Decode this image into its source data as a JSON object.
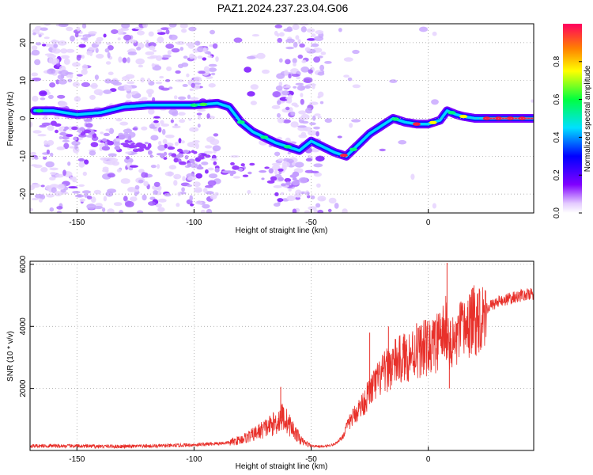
{
  "title": "PAZ1.2024.237.23.04.G06",
  "chart_data": [
    {
      "type": "heatmap",
      "xlabel": "Height of straight line (km)",
      "ylabel": "Frequency (Hz)",
      "xlim": [
        -170,
        45
      ],
      "ylim": [
        -25,
        25
      ],
      "xticks": [
        -150,
        -100,
        -50,
        0
      ],
      "yticks": [
        -20,
        -10,
        0,
        10,
        20
      ],
      "grid": true,
      "colorbar": {
        "label": "Normalized spectral amplitude",
        "range": [
          0,
          1
        ],
        "ticks": [
          0.0,
          0.2,
          0.4,
          0.6,
          0.8
        ],
        "colormap": [
          "#ffffff",
          "#e8d8ff",
          "#8000ff",
          "#0000ff",
          "#00e0ff",
          "#00ff00",
          "#ffff00",
          "#ff8000",
          "#ff0040"
        ]
      },
      "ridge": {
        "x": [
          -168,
          -160,
          -150,
          -140,
          -130,
          -120,
          -110,
          -100,
          -90,
          -85,
          -80,
          -75,
          -70,
          -65,
          -60,
          -55,
          -50,
          -45,
          -40,
          -35,
          -30,
          -25,
          -20,
          -15,
          -10,
          -5,
          0,
          5,
          8,
          12,
          15,
          20,
          25,
          30,
          40,
          45
        ],
        "y": [
          2,
          2,
          1,
          1.5,
          3,
          3.5,
          3.5,
          3.5,
          4,
          3,
          -1,
          -3.5,
          -5,
          -6.5,
          -7.5,
          -8.5,
          -6,
          -7.5,
          -9,
          -10,
          -7,
          -4,
          -2,
          0,
          -1,
          -1.5,
          -1.5,
          -0.5,
          2,
          1,
          0.5,
          0,
          0,
          0,
          0,
          0
        ]
      }
    },
    {
      "type": "line",
      "xlabel": "Height of straight line (km)",
      "ylabel": "SNR (10 * v/v)",
      "xlim": [
        -170,
        45
      ],
      "ylim": [
        0,
        6100
      ],
      "xticks": [
        -150,
        -100,
        -50,
        0
      ],
      "yticks": [
        2000,
        4000,
        6000
      ],
      "grid": true,
      "series_color": "#e8302a",
      "envelope": {
        "x": [
          -170,
          -150,
          -130,
          -110,
          -95,
          -85,
          -80,
          -75,
          -70,
          -65,
          -62,
          -60,
          -57,
          -54,
          -50,
          -45,
          -40,
          -37,
          -35,
          -33,
          -30,
          -27,
          -25,
          -20,
          -15,
          -10,
          -5,
          -2,
          0,
          3,
          5,
          7,
          8,
          9,
          10,
          12,
          15,
          20,
          25,
          30,
          35,
          40,
          45
        ],
        "y": [
          150,
          140,
          130,
          150,
          200,
          250,
          350,
          500,
          700,
          900,
          1100,
          900,
          600,
          300,
          150,
          120,
          200,
          400,
          700,
          1000,
          1300,
          1600,
          1900,
          2400,
          2800,
          3000,
          3200,
          3300,
          3300,
          3400,
          3600,
          3800,
          4000,
          3500,
          3300,
          3600,
          3900,
          4200,
          4600,
          4800,
          4900,
          5000,
          5050
        ]
      },
      "spikes": [
        {
          "x": -63,
          "y": 2050
        },
        {
          "x": -25,
          "y": 3800
        },
        {
          "x": -17,
          "y": 4000
        },
        {
          "x": -5,
          "y": 4100
        },
        {
          "x": 5,
          "y": 4300
        },
        {
          "x": 8,
          "y": 6050
        },
        {
          "x": 9,
          "y": 2000
        }
      ]
    }
  ]
}
